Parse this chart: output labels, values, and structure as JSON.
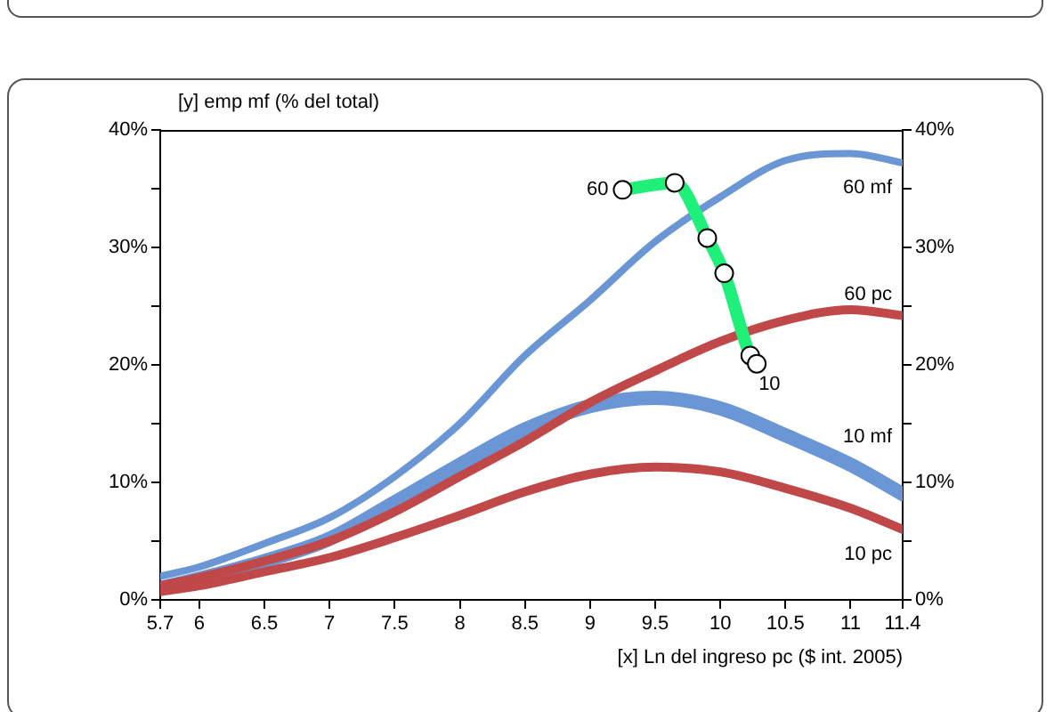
{
  "chart_data": {
    "type": "line",
    "ylabel": "[y] emp mf (% del total)",
    "xlabel": "[x] Ln del ingreso pc ($ int. 2005)",
    "xlim": [
      5.7,
      11.4
    ],
    "xticks": [
      5.7,
      6,
      6.5,
      7,
      7.5,
      8,
      8.5,
      9,
      9.5,
      10,
      10.5,
      11,
      11.4
    ],
    "ylim": [
      0,
      40
    ],
    "yticks": [
      {
        "value": 0,
        "label": "0%"
      },
      {
        "value": 5,
        "label": null
      },
      {
        "value": 10,
        "label": "10%"
      },
      {
        "value": 15,
        "label": null
      },
      {
        "value": 20,
        "label": "20%"
      },
      {
        "value": 25,
        "label": null
      },
      {
        "value": 30,
        "label": "30%"
      },
      {
        "value": 35,
        "label": null
      },
      {
        "value": 40,
        "label": "40%"
      }
    ],
    "y2lim": [
      0,
      40
    ],
    "y2ticks": [
      {
        "value": 0,
        "label": "0%"
      },
      {
        "value": 5,
        "label": null
      },
      {
        "value": 10,
        "label": "10%"
      },
      {
        "value": 15,
        "label": null
      },
      {
        "value": 20,
        "label": "20%"
      },
      {
        "value": 25,
        "label": null
      },
      {
        "value": 30,
        "label": "30%"
      },
      {
        "value": 35,
        "label": null
      },
      {
        "value": 40,
        "label": "40%"
      }
    ],
    "legend": false,
    "marker": "none",
    "x": [
      5.7,
      6,
      6.5,
      7,
      7.5,
      8,
      8.5,
      9,
      9.5,
      10,
      10.5,
      11,
      11.4
    ],
    "series": [
      {
        "name": "60 mf",
        "color": "#6a96d6",
        "values": [
          2.0,
          2.8,
          4.8,
          7.0,
          10.5,
          15,
          20.8,
          25.5,
          30.5,
          34.3,
          37.4,
          38.0,
          37.2
        ]
      },
      {
        "name": "10 mf",
        "color": "#6a96d6",
        "values": [
          1.0,
          1.8,
          3.3,
          5.2,
          8.3,
          11.5,
          14.5,
          16.5,
          17.2,
          16.3,
          14,
          11.5,
          9
        ]
      },
      {
        "name": "60 pc",
        "color": "#c04848",
        "values": [
          1.2,
          1.9,
          3.3,
          5.0,
          7.5,
          10.5,
          13.5,
          16.8,
          19.5,
          22,
          23.8,
          24.7,
          24.2
        ]
      },
      {
        "name": "10 pc",
        "color": "#c04848",
        "values": [
          0.7,
          1.2,
          2.4,
          3.6,
          5.3,
          7.2,
          9.2,
          10.7,
          11.3,
          10.9,
          9.5,
          7.8,
          6.0
        ]
      },
      {
        "color": "#1ef07a",
        "marker": "circle",
        "x": [
          9.25,
          9.65,
          9.9,
          10.03,
          10.23,
          10.28
        ],
        "values": [
          34.9,
          35.5,
          30.8,
          27.8,
          20.8,
          20.1
        ]
      }
    ],
    "annotations": [
      {
        "text": "60",
        "x": 9.25,
        "y": 34.9
      },
      {
        "text": "10",
        "x": 10.28,
        "y": 20.1
      }
    ]
  }
}
